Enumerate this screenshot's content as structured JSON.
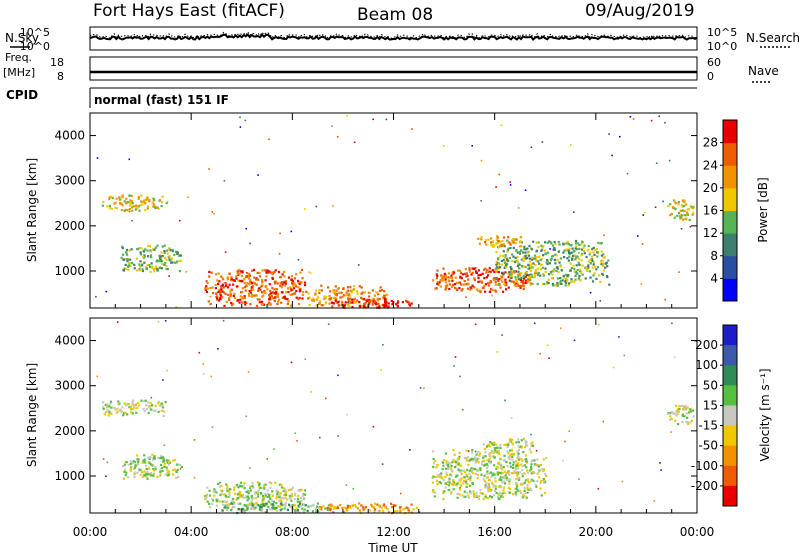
{
  "header": {
    "station": "Fort Hays East (fitACF)",
    "beam": "Beam 08",
    "date": "09/Aug/2019"
  },
  "noise_panel": {
    "left_label": "N.Sky",
    "right_label": "N.Search",
    "left_ticks": [
      "10^5",
      "10^0"
    ],
    "right_ticks": [
      "10^5",
      "10^0"
    ]
  },
  "freq_panel": {
    "left_label_top": "Freq.",
    "left_label_bottom": "[MHz]",
    "right_label": "Nave",
    "left_ticks": [
      "18",
      "8"
    ],
    "right_ticks": [
      "60",
      "0"
    ]
  },
  "cpid": {
    "label": "CPID",
    "value": "normal (fast) 151 IF"
  },
  "chart_data": [
    {
      "type": "heatmap",
      "title": "",
      "xlabel": "Time UT",
      "ylabel": "Slant Range [km]",
      "x_ticks": [
        "00:00",
        "04:00",
        "08:00",
        "12:00",
        "16:00",
        "20:00",
        "00:00"
      ],
      "y_ticks": [
        "1000",
        "2000",
        "3000",
        "4000"
      ],
      "xlim": [
        0,
        24
      ],
      "ylim": [
        180,
        4500
      ],
      "colorbar_label": "Power [dB]",
      "colorbar_ticks": [
        "4",
        "8",
        "12",
        "16",
        "20",
        "24",
        "28"
      ],
      "colorbar_colors": [
        "#0000ff",
        "#2a4fa0",
        "#3d7f6e",
        "#55b355",
        "#f0c800",
        "#f39200",
        "#f05a00",
        "#e80000"
      ],
      "echo_regions": [
        {
          "t": [
            0.4,
            3.0
          ],
          "r": [
            2350,
            2700
          ],
          "level": 4
        },
        {
          "t": [
            1.2,
            3.6
          ],
          "r": [
            1000,
            1600
          ],
          "level": 3
        },
        {
          "t": [
            4.5,
            8.5
          ],
          "r": [
            250,
            1050
          ],
          "level": 6
        },
        {
          "t": [
            8.5,
            11.8
          ],
          "r": [
            250,
            700
          ],
          "level": 5
        },
        {
          "t": [
            9.5,
            12.8
          ],
          "r": [
            200,
            420
          ],
          "level": 7
        },
        {
          "t": [
            13.5,
            17.5
          ],
          "r": [
            550,
            1100
          ],
          "level": 6
        },
        {
          "t": [
            16.0,
            20.5
          ],
          "r": [
            700,
            1700
          ],
          "level": 3
        },
        {
          "t": [
            15.3,
            17.0
          ],
          "r": [
            1550,
            1800
          ],
          "level": 5
        },
        {
          "t": [
            22.8,
            23.9
          ],
          "r": [
            2150,
            2600
          ],
          "level": 4
        }
      ]
    },
    {
      "type": "heatmap",
      "title": "",
      "xlabel": "Time UT",
      "ylabel": "Slant Range [km]",
      "x_ticks": [
        "00:00",
        "04:00",
        "08:00",
        "12:00",
        "16:00",
        "20:00",
        "00:00"
      ],
      "y_ticks": [
        "1000",
        "2000",
        "3000",
        "4000"
      ],
      "xlim": [
        0,
        24
      ],
      "ylim": [
        180,
        4500
      ],
      "colorbar_label": "Velocity [m s⁻¹]",
      "colorbar_ticks": [
        "200",
        "100",
        "50",
        "15",
        "-15",
        "-50",
        "-100",
        "-200"
      ],
      "colorbar_colors": [
        "#1c1cc8",
        "#3c5aa8",
        "#2e8b57",
        "#55c040",
        "#c8c8c0",
        "#f0c800",
        "#f39200",
        "#f05a00",
        "#e80000"
      ],
      "echo_regions": [
        {
          "t": [
            0.4,
            3.0
          ],
          "r": [
            2350,
            2700
          ],
          "level": 4
        },
        {
          "t": [
            1.2,
            3.6
          ],
          "r": [
            950,
            1500
          ],
          "level": 4
        },
        {
          "t": [
            4.5,
            8.5
          ],
          "r": [
            250,
            900
          ],
          "level": 4
        },
        {
          "t": [
            5.0,
            9.5
          ],
          "r": [
            200,
            420
          ],
          "level": 3
        },
        {
          "t": [
            9.0,
            13.0
          ],
          "r": [
            200,
            420
          ],
          "level": 6
        },
        {
          "t": [
            13.5,
            18.0
          ],
          "r": [
            500,
            1600
          ],
          "level": 4
        },
        {
          "t": [
            15.5,
            17.5
          ],
          "r": [
            1500,
            1850
          ],
          "level": 4
        },
        {
          "t": [
            22.8,
            23.9
          ],
          "r": [
            2150,
            2600
          ],
          "level": 4
        }
      ]
    }
  ]
}
